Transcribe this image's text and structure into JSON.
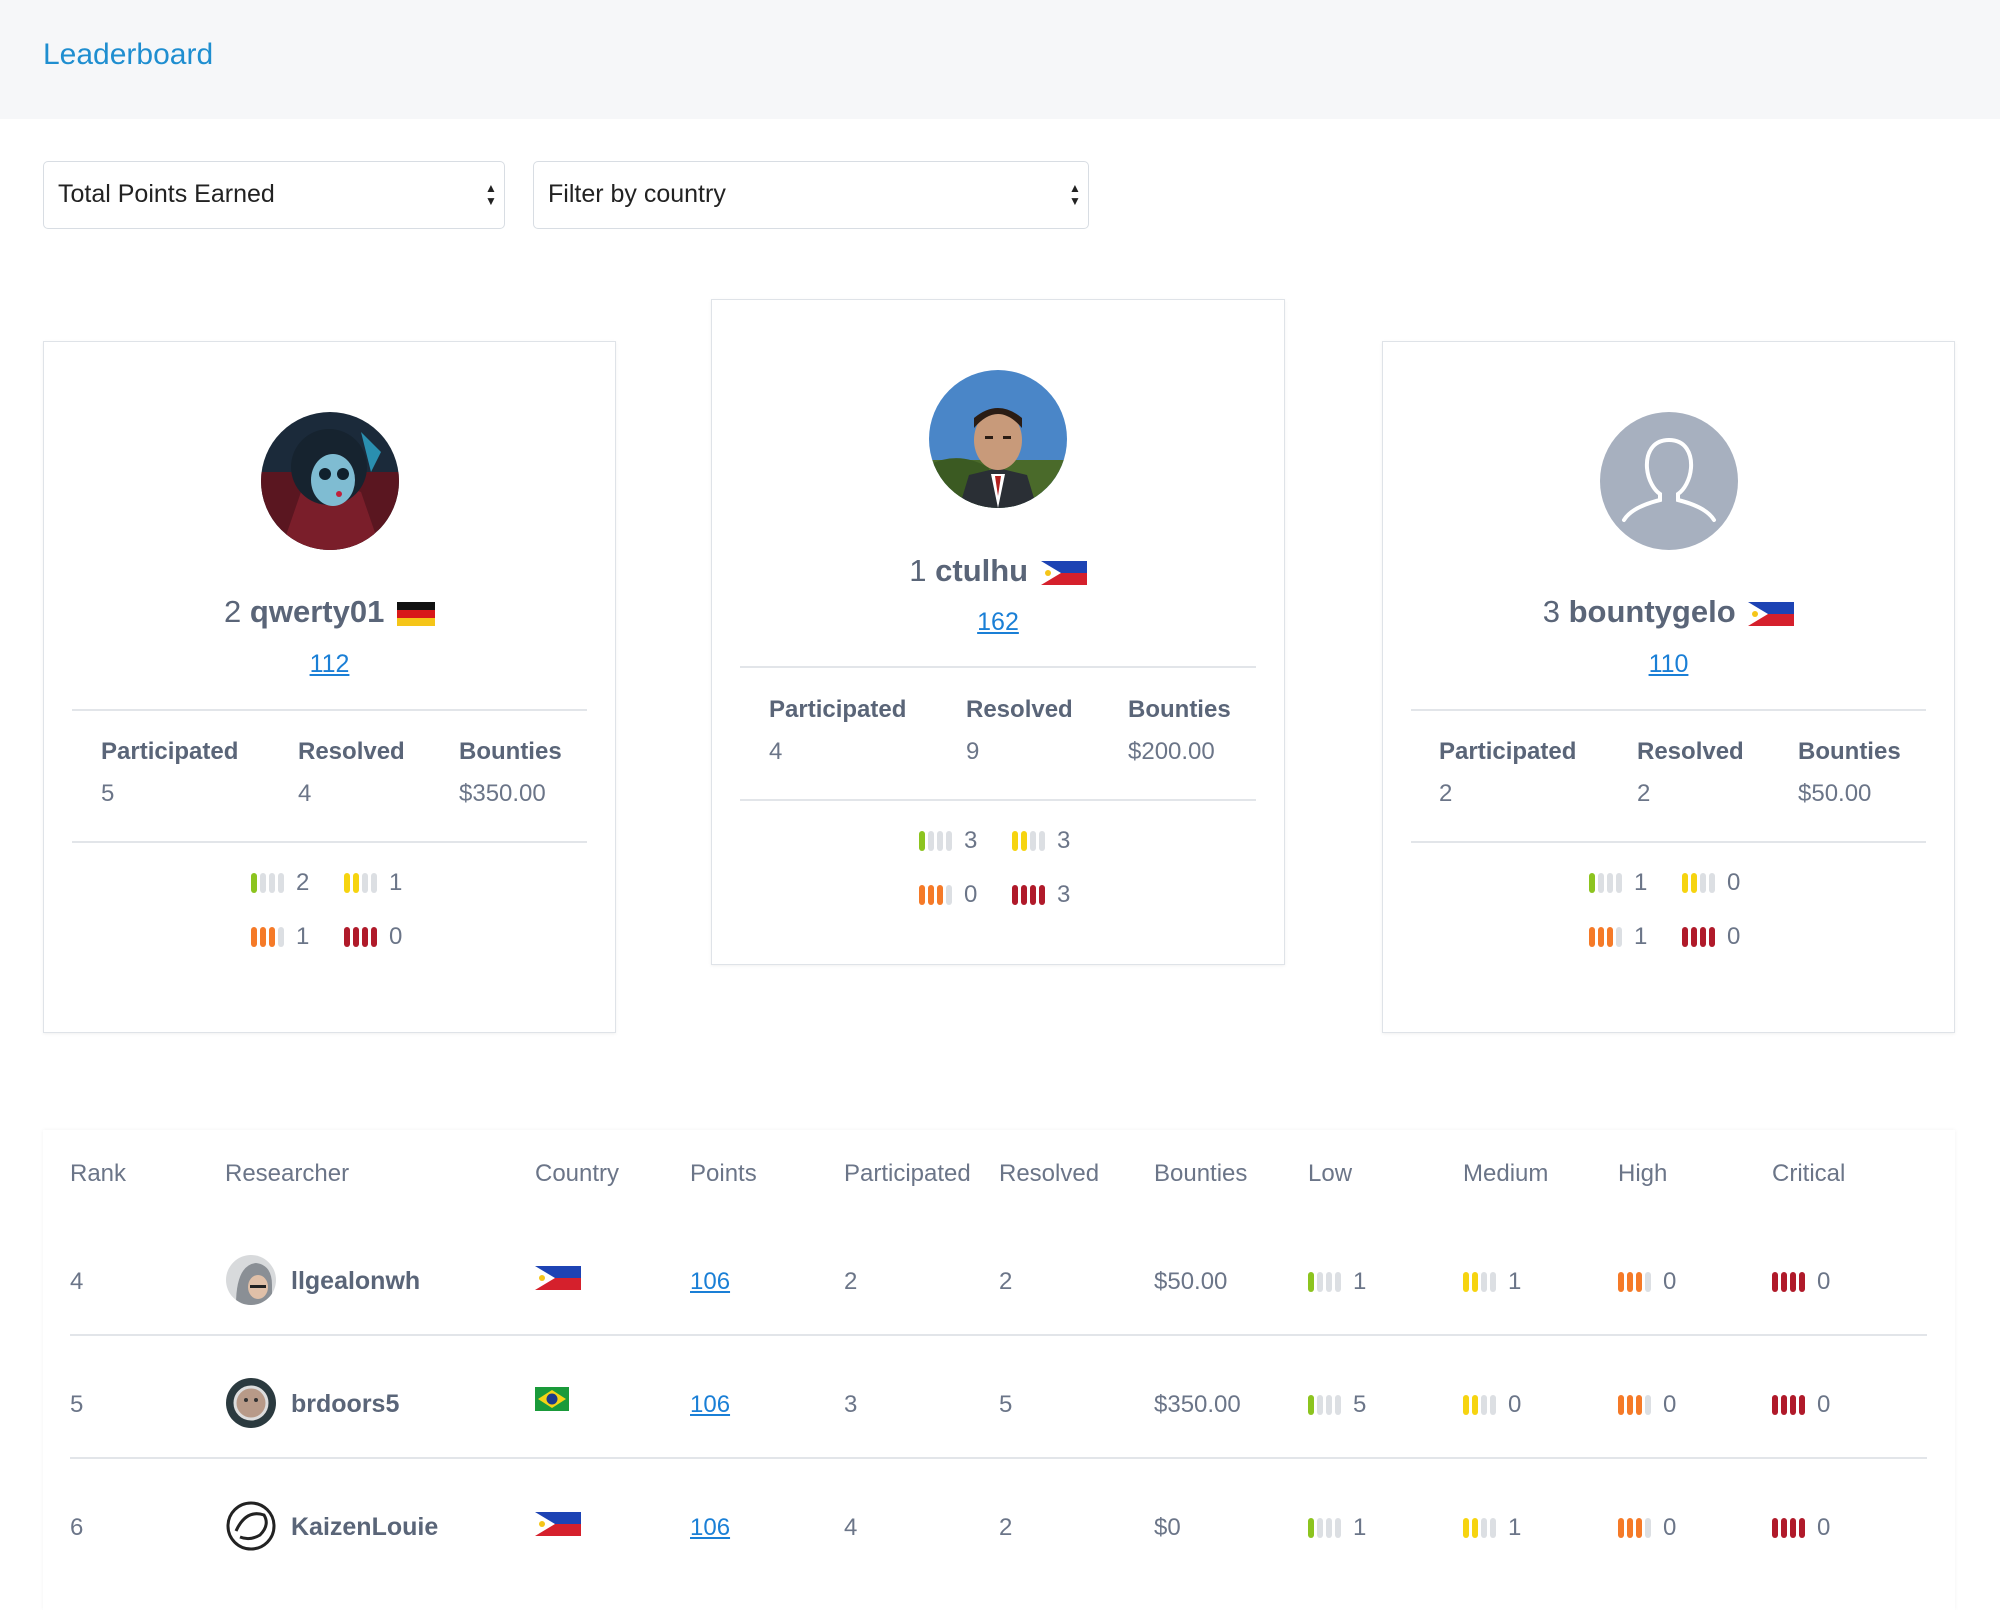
{
  "header": {
    "title": "Leaderboard"
  },
  "filters": {
    "sort_value": "Total Points Earned",
    "country_value": "Filter by country"
  },
  "colors": {
    "low": "#8cc41f",
    "medium": "#f6d410",
    "high": "#f57a28",
    "critical": "#b01a2a",
    "link": "#1a7fd6"
  },
  "podium": [
    {
      "rank": "2",
      "username": "qwerty01",
      "country": "de-flag",
      "points": "112",
      "participated_label": "Participated",
      "resolved_label": "Resolved",
      "bounties_label": "Bounties",
      "participated": "5",
      "resolved": "4",
      "bounties": "$350.00",
      "low": "2",
      "medium": "1",
      "high": "1",
      "critical": "0"
    },
    {
      "rank": "1",
      "username": "ctulhu",
      "country": "ph-flag",
      "points": "162",
      "participated_label": "Participated",
      "resolved_label": "Resolved",
      "bounties_label": "Bounties",
      "participated": "4",
      "resolved": "9",
      "bounties": "$200.00",
      "low": "3",
      "medium": "3",
      "high": "0",
      "critical": "3"
    },
    {
      "rank": "3",
      "username": "bountygelo",
      "country": "ph-flag",
      "points": "110",
      "participated_label": "Participated",
      "resolved_label": "Resolved",
      "bounties_label": "Bounties",
      "participated": "2",
      "resolved": "2",
      "bounties": "$50.00",
      "low": "1",
      "medium": "0",
      "high": "1",
      "critical": "0"
    }
  ],
  "table": {
    "headers": [
      "Rank",
      "Researcher",
      "Country",
      "Points",
      "Participated",
      "Resolved",
      "Bounties",
      "Low",
      "Medium",
      "High",
      "Critical"
    ],
    "rows": [
      {
        "rank": "4",
        "researcher": "llgealonwh",
        "country": "ph-flag",
        "points": "106",
        "participated": "2",
        "resolved": "2",
        "bounties": "$50.00",
        "low": "1",
        "medium": "1",
        "high": "0",
        "critical": "0"
      },
      {
        "rank": "5",
        "researcher": "brdoors5",
        "country": "br-flag",
        "points": "106",
        "participated": "3",
        "resolved": "5",
        "bounties": "$350.00",
        "low": "5",
        "medium": "0",
        "high": "0",
        "critical": "0"
      },
      {
        "rank": "6",
        "researcher": "KaizenLouie",
        "country": "ph-flag",
        "points": "106",
        "participated": "4",
        "resolved": "2",
        "bounties": "$0",
        "low": "1",
        "medium": "1",
        "high": "0",
        "critical": "0"
      }
    ]
  }
}
